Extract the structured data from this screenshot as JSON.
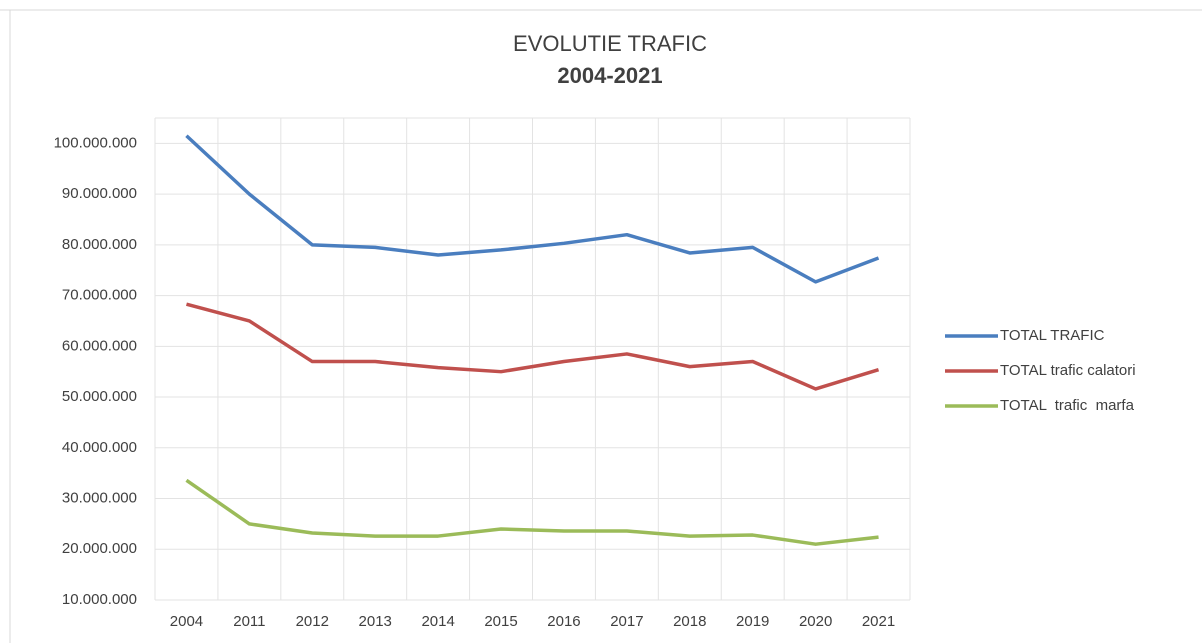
{
  "chart_data": {
    "type": "line",
    "title": "EVOLUTIE TRAFIC",
    "subtitle": "2004-2021",
    "categories": [
      "2004",
      "2011",
      "2012",
      "2013",
      "2014",
      "2015",
      "2016",
      "2017",
      "2018",
      "2019",
      "2020",
      "2021"
    ],
    "series": [
      {
        "name": "TOTAL TRAFIC",
        "color": "#4a7ebf",
        "values": [
          101500000,
          90000000,
          80000000,
          79500000,
          78000000,
          79000000,
          80300000,
          82000000,
          78400000,
          79500000,
          72700000,
          77400000
        ]
      },
      {
        "name": "TOTAL trafic calatori",
        "color": "#c0504d",
        "values": [
          68300000,
          65000000,
          57000000,
          57000000,
          55800000,
          55000000,
          57000000,
          58500000,
          56000000,
          57000000,
          51600000,
          55400000
        ]
      },
      {
        "name": "TOTAL  trafic  marfa",
        "color": "#9bbb59",
        "values": [
          33600000,
          25000000,
          23200000,
          22600000,
          22600000,
          24000000,
          23600000,
          23600000,
          22600000,
          22800000,
          21000000,
          22400000
        ]
      }
    ],
    "ylim": [
      10000000,
      105000000
    ],
    "yticks": [
      {
        "value": 10000000,
        "label": "10.000.000"
      },
      {
        "value": 20000000,
        "label": "20.000.000"
      },
      {
        "value": 30000000,
        "label": "30.000.000"
      },
      {
        "value": 40000000,
        "label": "40.000.000"
      },
      {
        "value": 50000000,
        "label": "50.000.000"
      },
      {
        "value": 60000000,
        "label": "60.000.000"
      },
      {
        "value": 70000000,
        "label": "70.000.000"
      },
      {
        "value": 80000000,
        "label": "80.000.000"
      },
      {
        "value": 90000000,
        "label": "90.000.000"
      },
      {
        "value": 100000000,
        "label": "100.000.000"
      }
    ],
    "grid": true,
    "legend": "right"
  }
}
